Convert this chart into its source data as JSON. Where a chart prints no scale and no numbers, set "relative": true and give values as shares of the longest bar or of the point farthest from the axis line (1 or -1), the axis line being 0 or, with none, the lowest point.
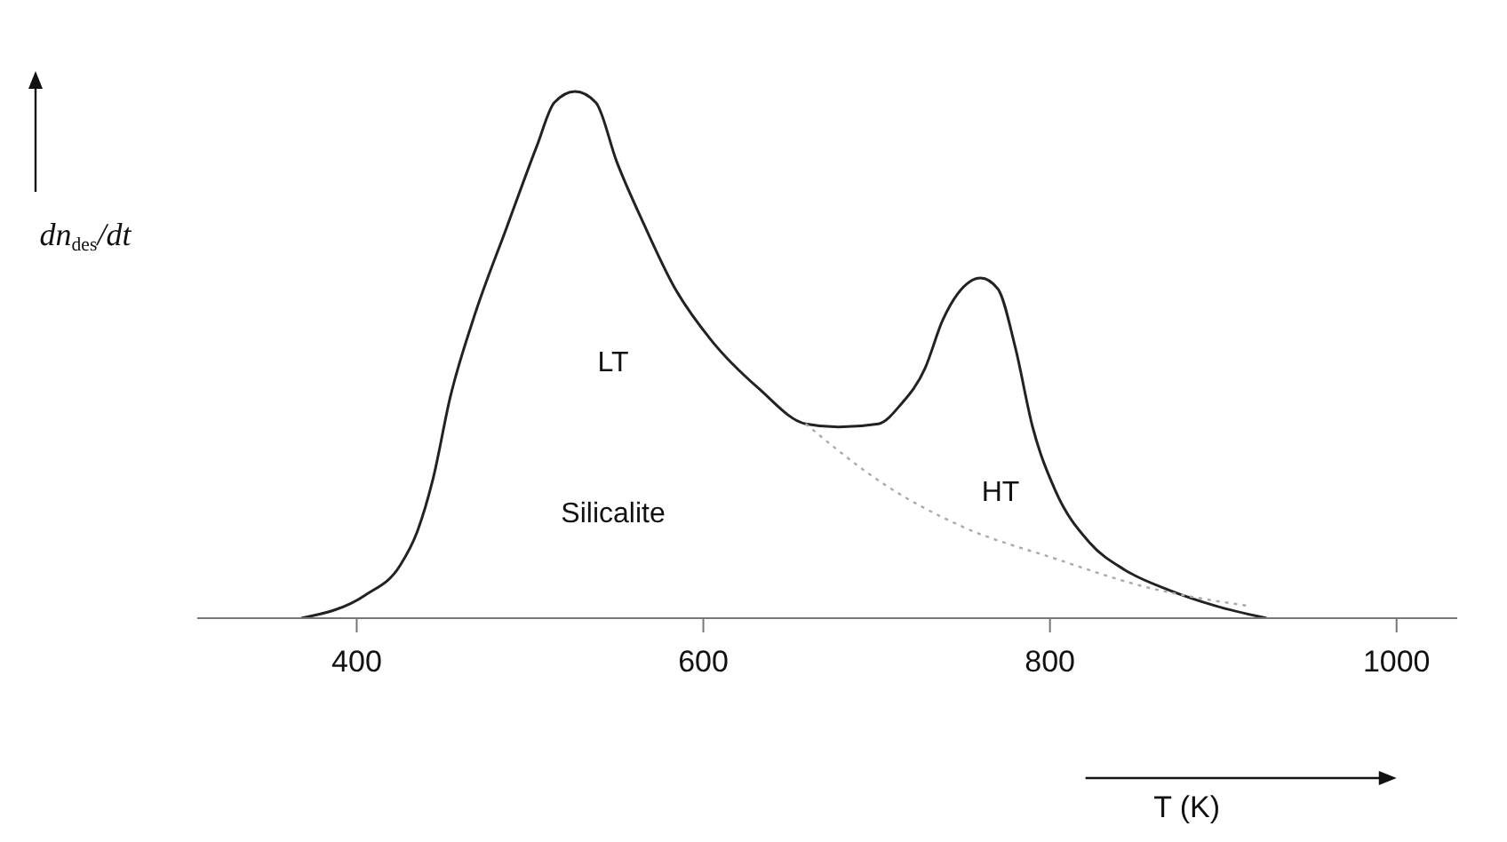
{
  "chart_data": {
    "type": "line",
    "relative": true,
    "xlabel": "T (K)",
    "ylabel": "dn$_{des}$/dt",
    "xlim": [
      308,
      1035
    ],
    "xticks": [
      400,
      600,
      800,
      1000
    ],
    "tick_labels": "x",
    "grid": false,
    "legend": false,
    "marker": "none",
    "series": [
      {
        "color": "#222222",
        "line_style": "solid",
        "x": [
          368,
          405,
          425,
          435,
          444,
          454,
          467,
          487,
          504,
          514,
          526,
          538,
          550,
          566,
          583,
          605,
          632,
          659,
          678,
          701,
          714,
          728,
          738,
          747,
          760,
          770,
          780,
          790,
          803,
          823,
          843,
          869,
          896,
          925
        ],
        "values": [
          0,
          0.044,
          0.1,
          0.165,
          0.264,
          0.42,
          0.565,
          0.746,
          0.897,
          0.979,
          1,
          0.979,
          0.867,
          0.746,
          0.63,
          0.526,
          0.436,
          0.369,
          0.363,
          0.369,
          0.406,
          0.475,
          0.565,
          0.617,
          0.646,
          0.625,
          0.514,
          0.363,
          0.243,
          0.143,
          0.092,
          0.053,
          0.023,
          0
        ]
      },
      {
        "color": "#aaaaaa",
        "line_style": "dotted",
        "x": [
          659,
          704,
          750,
          803,
          852,
          915
        ],
        "values": [
          0.369,
          0.255,
          0.173,
          0.113,
          0.062,
          0.023
        ]
      }
    ],
    "annotations": [
      "LT",
      "Silicalite",
      "HT"
    ]
  }
}
